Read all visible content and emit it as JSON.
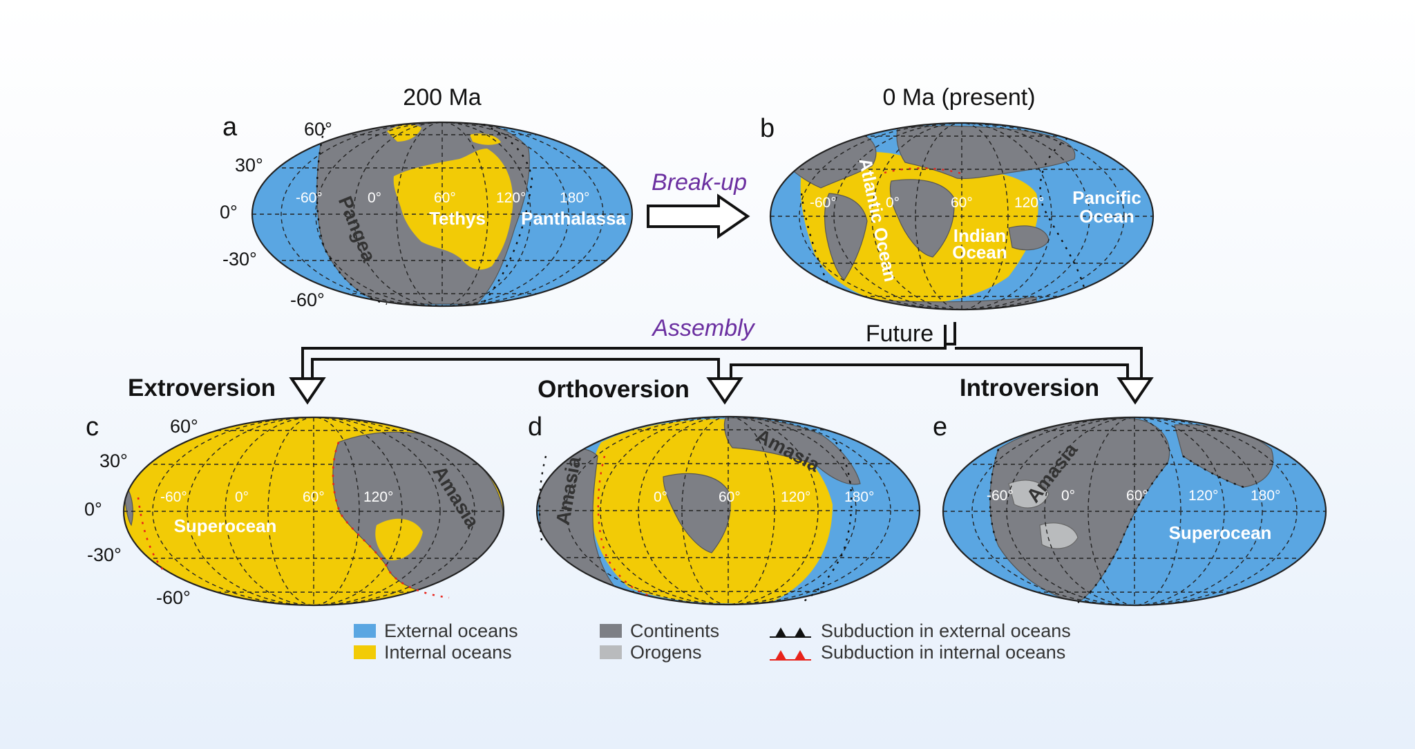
{
  "panels": {
    "a": {
      "letter": "a",
      "title": "200 Ma",
      "lats": [
        "60°",
        "30°",
        "0°",
        "-30°",
        "-60°"
      ],
      "lons": [
        "-60°",
        "0°",
        "60°",
        "120°",
        "180°"
      ],
      "labels": {
        "pangea": "Pangea",
        "tethys": "Tethys",
        "panthalassa": "Panthalassa"
      }
    },
    "b": {
      "letter": "b",
      "title": "0 Ma (present)",
      "lons": [
        "-60°",
        "0°",
        "60°",
        "120°"
      ],
      "labels": {
        "atlantic": "Atlantic Ocean",
        "indian_1": "Indian",
        "indian_2": "Ocean",
        "pacific_1": "Pancific",
        "pacific_2": "Ocean"
      }
    },
    "c": {
      "letter": "c",
      "heading": "Extroversion",
      "lats": [
        "60°",
        "30°",
        "0°",
        "-30°",
        "-60°"
      ],
      "lons": [
        "-60°",
        "0°",
        "60°",
        "120°"
      ],
      "labels": {
        "superocean": "Superocean",
        "amasia": "Amasia"
      }
    },
    "d": {
      "letter": "d",
      "heading": "Orthoversion",
      "lons": [
        "0°",
        "60°",
        "120°",
        "180°"
      ],
      "labels": {
        "amasia_left": "Amasia",
        "amasia_top": "Amasia"
      }
    },
    "e": {
      "letter": "e",
      "heading": "Introversion",
      "lons": [
        "-60°",
        "0°",
        "60°",
        "120°",
        "180°"
      ],
      "labels": {
        "amasia": "Amasia",
        "superocean": "Superocean"
      }
    }
  },
  "arrows": {
    "breakup": "Break-up",
    "assembly": "Assembly",
    "future": "Future"
  },
  "legend": {
    "external_oceans": "External oceans",
    "internal_oceans": "Internal oceans",
    "continents": "Continents",
    "orogens": "Orogens",
    "sub_external": "Subduction in external oceans",
    "sub_internal": "Subduction in internal oceans"
  },
  "colors": {
    "external_ocean": "#5aa6e2",
    "internal_ocean": "#f2cb06",
    "continent": "#7d7f85",
    "orogen": "#b9bbbd",
    "sub_external": "#111111",
    "sub_internal": "#e8231b",
    "purple_text": "#6b2fa0"
  }
}
